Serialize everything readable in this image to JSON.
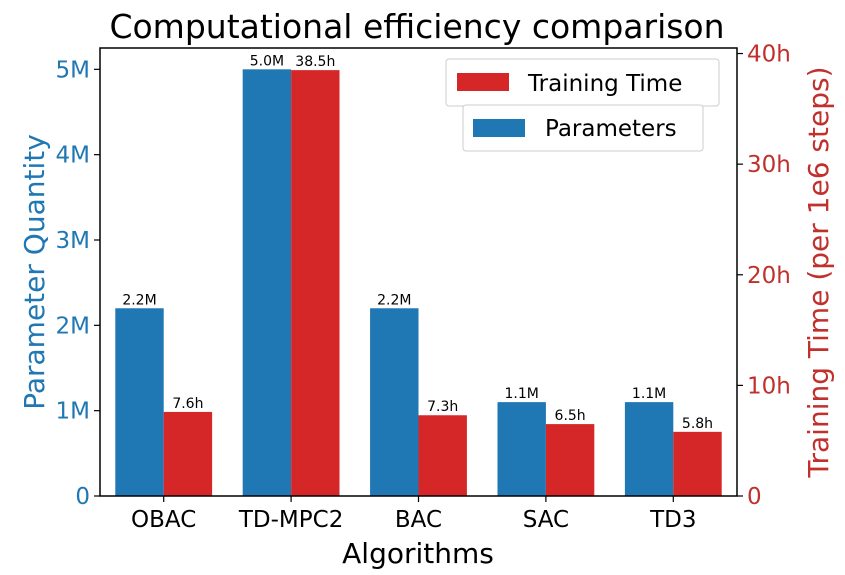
{
  "chart_data": {
    "type": "bar",
    "title": "Computational efficiency comparison",
    "xlabel": "Algorithms",
    "ylabel_left": "Parameter Quantity",
    "ylabel_right": "Training Time (per 1e6 steps)",
    "categories": [
      "OBAC",
      "TD-MPC2",
      "BAC",
      "SAC",
      "TD3"
    ],
    "ylim_left": [
      0,
      5.25
    ],
    "ylim_right": [
      0,
      40.5
    ],
    "yticks_left": [
      {
        "value": 0,
        "label": "0"
      },
      {
        "value": 1,
        "label": "1M"
      },
      {
        "value": 2,
        "label": "2M"
      },
      {
        "value": 3,
        "label": "3M"
      },
      {
        "value": 4,
        "label": "4M"
      },
      {
        "value": 5,
        "label": "5M"
      }
    ],
    "yticks_right": [
      {
        "value": 0,
        "label": "0"
      },
      {
        "value": 10,
        "label": "10h"
      },
      {
        "value": 20,
        "label": "20h"
      },
      {
        "value": 30,
        "label": "30h"
      },
      {
        "value": 40,
        "label": "40h"
      }
    ],
    "grid": false,
    "legend_position": "top-right",
    "series": [
      {
        "name": "Parameters",
        "axis": "left",
        "unit": "M",
        "color": "#1f77b4",
        "values": [
          2.2,
          5.0,
          2.2,
          1.1,
          1.1
        ],
        "labels": [
          "2.2M",
          "5.0M",
          "2.2M",
          "1.1M",
          "1.1M"
        ]
      },
      {
        "name": "Training Time",
        "axis": "right",
        "unit": "h",
        "color": "#d62728",
        "values": [
          7.6,
          38.5,
          7.3,
          6.5,
          5.8
        ],
        "labels": [
          "7.6h",
          "38.5h",
          "7.3h",
          "6.5h",
          "5.8h"
        ]
      }
    ],
    "axis_colors": {
      "left": "#1f77b4",
      "right": "#c0302c"
    }
  }
}
